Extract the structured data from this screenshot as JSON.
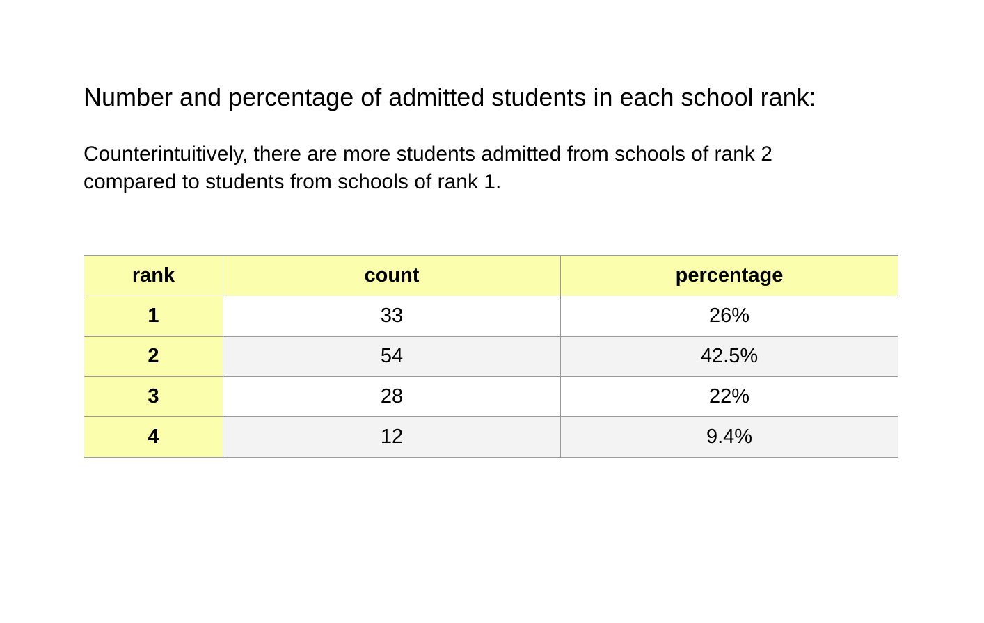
{
  "title": "Number and percentage of admitted students in each school rank:",
  "subtitle": {
    "line1": "Counterintuitively, there are more students admitted from schools of rank 2",
    "line2": "compared to students from schools of rank 1."
  },
  "table": {
    "headers": [
      "rank",
      "count",
      "percentage"
    ],
    "rows": [
      {
        "rank": "1",
        "count": "33",
        "percentage": "26%"
      },
      {
        "rank": "2",
        "count": "54",
        "percentage": "42.5%"
      },
      {
        "rank": "3",
        "count": "28",
        "percentage": "22%"
      },
      {
        "rank": "4",
        "count": "12",
        "percentage": "9.4%"
      }
    ]
  },
  "colors": {
    "header_bg": "#fafead",
    "row_alt_bg": "#f3f3f3",
    "border": "#9a9a9a"
  }
}
